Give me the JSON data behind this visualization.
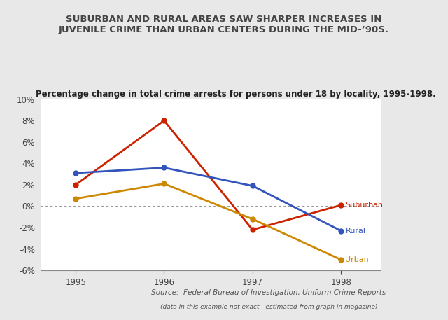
{
  "title_main": "SUBURBAN AND RURAL AREAS SAW SHARPER INCREASES IN\nJUVENILE CRIME THAN URBAN CENTERS DURING THE MID-’90S.",
  "subtitle": "Percentage change in total crime arrests for persons under 18 by locality, 1995-1998.",
  "source_line1": "Source:  Federal Bureau of Investigation, Uniform Crime Reports",
  "source_line2": "(data in this example not exact - estimated from graph in magazine)",
  "years": [
    1995,
    1996,
    1997,
    1998
  ],
  "suburban": [
    2.0,
    8.0,
    -2.2,
    0.1
  ],
  "rural": [
    3.1,
    3.6,
    1.9,
    -2.3
  ],
  "urban": [
    0.7,
    2.1,
    -1.2,
    -5.0
  ],
  "suburban_color": "#cc2200",
  "rural_color": "#3355bb",
  "urban_color": "#cc8800",
  "ylim": [
    -6,
    10
  ],
  "yticks": [
    -6,
    -4,
    -2,
    0,
    2,
    4,
    6,
    8,
    10
  ],
  "bg_color": "#e8e8e8",
  "plot_bg_color": "#ffffff",
  "title_fontsize": 9.5,
  "subtitle_fontsize": 8.5,
  "source_fontsize": 7.5,
  "source2_fontsize": 6.5,
  "marker_size": 6,
  "line_width": 2.0
}
